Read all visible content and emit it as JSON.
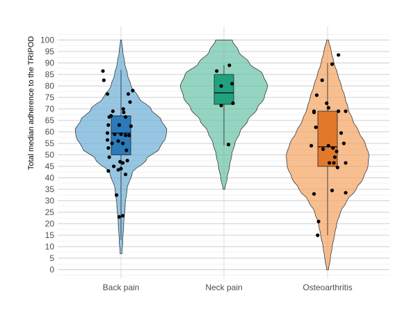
{
  "chart_data": {
    "type": "violin",
    "title": "",
    "xlabel": "",
    "ylabel": "Total median adherence to the TRIPOD",
    "ylim": [
      -2,
      103
    ],
    "yticks": [
      0,
      5,
      10,
      15,
      20,
      25,
      30,
      35,
      40,
      45,
      50,
      55,
      60,
      65,
      70,
      75,
      80,
      85,
      90,
      95,
      100
    ],
    "grid": true,
    "legend": "none",
    "categories": [
      "Back pain",
      "Neck pain",
      "Osteoarthritis"
    ],
    "colors": [
      "#6baed6",
      "#66c2a5",
      "#f4a261"
    ],
    "box_colors": [
      "#2b7bba",
      "#21a27f",
      "#e07a2a"
    ],
    "series": [
      {
        "category": "Back pain",
        "violin": {
          "min": 7,
          "max": 100,
          "profile": [
            [
              7,
              0.02
            ],
            [
              13,
              0.04
            ],
            [
              20,
              0.06
            ],
            [
              28,
              0.09
            ],
            [
              35,
              0.13
            ],
            [
              42,
              0.24
            ],
            [
              48,
              0.55
            ],
            [
              53,
              0.85
            ],
            [
              58,
              0.98
            ],
            [
              61,
              1.0
            ],
            [
              65,
              0.88
            ],
            [
              70,
              0.65
            ],
            [
              75,
              0.38
            ],
            [
              80,
              0.22
            ],
            [
              85,
              0.14
            ],
            [
              90,
              0.08
            ],
            [
              95,
              0.04
            ],
            [
              100,
              0.01
            ]
          ]
        },
        "box": {
          "q1": 50,
          "median": 59.5,
          "q3": 67,
          "whisker_low": 13,
          "whisker_high": 87
        },
        "points": [
          [
            -0.4,
            86.5
          ],
          [
            -0.38,
            82.5
          ],
          [
            -0.3,
            76.5
          ],
          [
            0.26,
            78
          ],
          [
            0.16,
            76.5
          ],
          [
            0.2,
            73
          ],
          [
            0.05,
            70
          ],
          [
            0.06,
            68.5
          ],
          [
            -0.18,
            69
          ],
          [
            -0.22,
            67
          ],
          [
            -0.26,
            66.5
          ],
          [
            0.1,
            66.5
          ],
          [
            -0.28,
            63
          ],
          [
            -0.04,
            63
          ],
          [
            0.22,
            62.5
          ],
          [
            -0.3,
            59.5
          ],
          [
            -0.14,
            59
          ],
          [
            0.0,
            59
          ],
          [
            0.1,
            58.5
          ],
          [
            0.18,
            58.5
          ],
          [
            -0.3,
            56.5
          ],
          [
            -0.06,
            56
          ],
          [
            -0.2,
            55
          ],
          [
            0.04,
            55
          ],
          [
            -0.28,
            53
          ],
          [
            0.12,
            52
          ],
          [
            -0.26,
            49
          ],
          [
            0.14,
            47.5
          ],
          [
            -0.02,
            47
          ],
          [
            0.04,
            46.5
          ],
          [
            -0.16,
            45
          ],
          [
            0.0,
            44
          ],
          [
            -0.28,
            43
          ],
          [
            0.1,
            41.5
          ],
          [
            -0.1,
            32.5
          ],
          [
            -0.04,
            23
          ],
          [
            0.04,
            23.5
          ],
          [
            -0.06,
            43.5
          ]
        ]
      },
      {
        "category": "Neck pain",
        "violin": {
          "min": 35,
          "max": 100,
          "profile": [
            [
              35,
              0.02
            ],
            [
              40,
              0.07
            ],
            [
              45,
              0.12
            ],
            [
              50,
              0.17
            ],
            [
              55,
              0.24
            ],
            [
              60,
              0.35
            ],
            [
              65,
              0.52
            ],
            [
              70,
              0.72
            ],
            [
              75,
              0.88
            ],
            [
              80,
              0.95
            ],
            [
              85,
              0.85
            ],
            [
              90,
              0.55
            ],
            [
              95,
              0.32
            ],
            [
              100,
              0.18
            ]
          ]
        },
        "box": {
          "q1": 72,
          "median": 77,
          "q3": 85,
          "whisker_low": 54,
          "whisker_high": 89
        },
        "points": [
          [
            -0.16,
            86.5
          ],
          [
            0.12,
            89
          ],
          [
            0.18,
            81
          ],
          [
            -0.06,
            80
          ],
          [
            0.2,
            72.5
          ],
          [
            -0.06,
            71.5
          ],
          [
            0.1,
            54.5
          ]
        ]
      },
      {
        "category": "Osteoarthritis",
        "violin": {
          "min": 0,
          "max": 100,
          "profile": [
            [
              0,
              0.02
            ],
            [
              5,
              0.06
            ],
            [
              10,
              0.1
            ],
            [
              15,
              0.15
            ],
            [
              20,
              0.2
            ],
            [
              25,
              0.28
            ],
            [
              30,
              0.42
            ],
            [
              35,
              0.62
            ],
            [
              40,
              0.78
            ],
            [
              45,
              0.88
            ],
            [
              50,
              0.9
            ],
            [
              55,
              0.82
            ],
            [
              60,
              0.68
            ],
            [
              65,
              0.55
            ],
            [
              70,
              0.45
            ],
            [
              75,
              0.38
            ],
            [
              80,
              0.3
            ],
            [
              85,
              0.22
            ],
            [
              90,
              0.14
            ],
            [
              95,
              0.08
            ],
            [
              100,
              0.02
            ]
          ]
        },
        "box": {
          "q1": 45,
          "median": 53.5,
          "q3": 69,
          "whisker_low": 15,
          "whisker_high": 90
        },
        "points": [
          [
            0.24,
            93.5
          ],
          [
            0.1,
            89.5
          ],
          [
            -0.12,
            82.5
          ],
          [
            -0.24,
            76
          ],
          [
            -0.02,
            72.5
          ],
          [
            0.02,
            70.5
          ],
          [
            0.24,
            69
          ],
          [
            0.4,
            69
          ],
          [
            -0.3,
            69
          ],
          [
            -0.3,
            68.5
          ],
          [
            0.3,
            59.5
          ],
          [
            -0.26,
            62
          ],
          [
            0.36,
            55
          ],
          [
            -0.36,
            54
          ],
          [
            0.02,
            54
          ],
          [
            0.12,
            53
          ],
          [
            -0.1,
            52.5
          ],
          [
            0.2,
            51.5
          ],
          [
            0.16,
            49
          ],
          [
            0.04,
            46.5
          ],
          [
            0.14,
            46.5
          ],
          [
            0.4,
            46.5
          ],
          [
            0.22,
            44.5
          ],
          [
            0.1,
            34.5
          ],
          [
            0.4,
            33.5
          ],
          [
            -0.3,
            33
          ],
          [
            -0.2,
            21
          ],
          [
            -0.22,
            15
          ]
        ]
      }
    ]
  }
}
